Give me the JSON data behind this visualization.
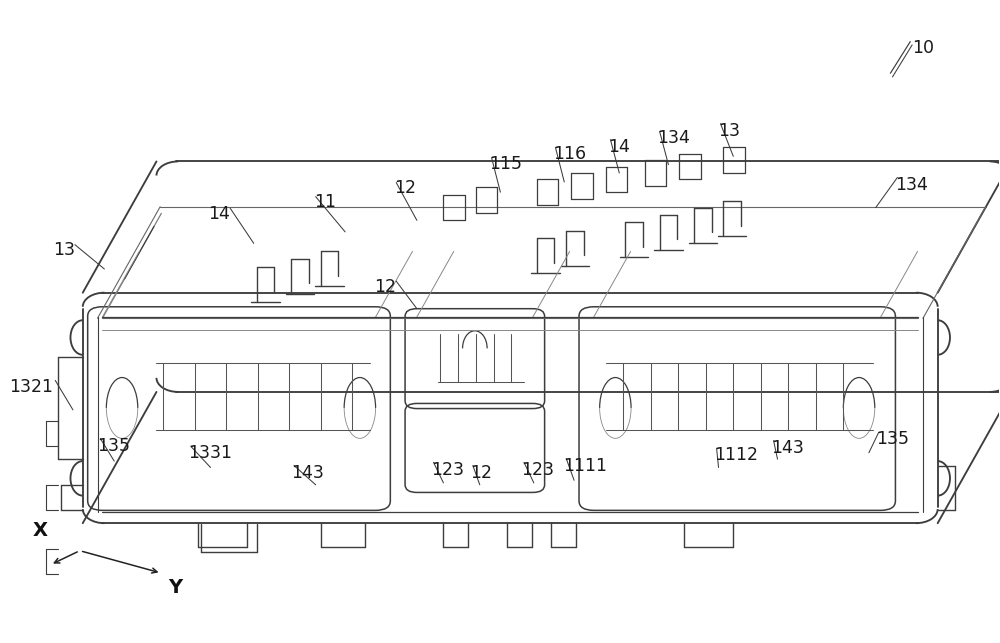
{
  "fig_w": 10.0,
  "fig_h": 6.43,
  "dpi": 100,
  "bg": "#ffffff",
  "lc": "#3d3d3d",
  "fc": "#1a1a1a",
  "fs": 12.5,
  "labels": [
    {
      "t": "10",
      "ix": 0.912,
      "iy": 0.058,
      "ha": "left",
      "va": "top"
    },
    {
      "t": "13",
      "ix": 0.06,
      "iy": 0.375,
      "ha": "right",
      "va": "top"
    },
    {
      "t": "14",
      "ix": 0.218,
      "iy": 0.318,
      "ha": "right",
      "va": "top"
    },
    {
      "t": "11",
      "ix": 0.303,
      "iy": 0.3,
      "ha": "left",
      "va": "top"
    },
    {
      "t": "12",
      "ix": 0.385,
      "iy": 0.278,
      "ha": "left",
      "va": "top"
    },
    {
      "t": "115",
      "ix": 0.482,
      "iy": 0.24,
      "ha": "left",
      "va": "top"
    },
    {
      "t": "116",
      "ix": 0.547,
      "iy": 0.225,
      "ha": "left",
      "va": "top"
    },
    {
      "t": "14",
      "ix": 0.603,
      "iy": 0.213,
      "ha": "left",
      "va": "top"
    },
    {
      "t": "134",
      "ix": 0.653,
      "iy": 0.2,
      "ha": "left",
      "va": "top"
    },
    {
      "t": "13",
      "ix": 0.715,
      "iy": 0.188,
      "ha": "left",
      "va": "top"
    },
    {
      "t": "134",
      "ix": 0.895,
      "iy": 0.272,
      "ha": "left",
      "va": "top"
    },
    {
      "t": "12",
      "ix": 0.387,
      "iy": 0.432,
      "ha": "right",
      "va": "top"
    },
    {
      "t": "1321",
      "ix": 0.038,
      "iy": 0.588,
      "ha": "right",
      "va": "top"
    },
    {
      "t": "135",
      "ix": 0.083,
      "iy": 0.68,
      "ha": "left",
      "va": "top"
    },
    {
      "t": "1331",
      "ix": 0.175,
      "iy": 0.692,
      "ha": "left",
      "va": "top"
    },
    {
      "t": "143",
      "ix": 0.28,
      "iy": 0.722,
      "ha": "left",
      "va": "top"
    },
    {
      "t": "123",
      "ix": 0.422,
      "iy": 0.718,
      "ha": "left",
      "va": "top"
    },
    {
      "t": "12",
      "ix": 0.462,
      "iy": 0.722,
      "ha": "left",
      "va": "top"
    },
    {
      "t": "123",
      "ix": 0.514,
      "iy": 0.718,
      "ha": "left",
      "va": "top"
    },
    {
      "t": "1111",
      "ix": 0.557,
      "iy": 0.712,
      "ha": "left",
      "va": "top"
    },
    {
      "t": "1112",
      "ix": 0.71,
      "iy": 0.695,
      "ha": "left",
      "va": "top"
    },
    {
      "t": "143",
      "ix": 0.768,
      "iy": 0.683,
      "ha": "left",
      "va": "top"
    },
    {
      "t": "135",
      "ix": 0.875,
      "iy": 0.67,
      "ha": "left",
      "va": "top"
    }
  ]
}
